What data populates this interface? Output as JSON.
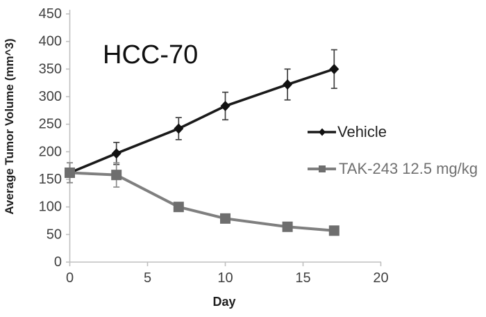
{
  "chart_data": {
    "type": "line",
    "title": "HCC-70",
    "xlabel": "Day",
    "ylabel": "Average Tumor Volume (mm^3)",
    "xlim": [
      0,
      20
    ],
    "ylim": [
      0,
      450
    ],
    "xticks": [
      0,
      5,
      10,
      15,
      20
    ],
    "yticks": [
      0,
      50,
      100,
      150,
      200,
      250,
      300,
      350,
      400,
      450
    ],
    "grid": false,
    "legend_position": "right-middle",
    "axis_color": "#bfbfbf",
    "tick_label_color": "#404040",
    "x": [
      0,
      3,
      7,
      10,
      14,
      17
    ],
    "series": [
      {
        "name": "Vehicle",
        "color": "#1a1a1a",
        "marker_color": "#111111",
        "label_color": "#1f1f1f",
        "error_color": "#404040",
        "marker": "diamond",
        "line_width": 3.6,
        "values": [
          162,
          197,
          242,
          283,
          322,
          350
        ],
        "error": [
          18,
          20,
          20,
          25,
          28,
          35
        ]
      },
      {
        "name": "TAK-243 12.5 mg/kg",
        "color": "#7f7f7f",
        "marker_color": "#6e6e6e",
        "label_color": "#6f6f6f",
        "error_color": "#8c8c8c",
        "marker": "square",
        "line_width": 4,
        "values": [
          162,
          158,
          100,
          79,
          64,
          57
        ],
        "error": [
          18,
          22,
          0,
          0,
          0,
          0
        ]
      }
    ]
  }
}
